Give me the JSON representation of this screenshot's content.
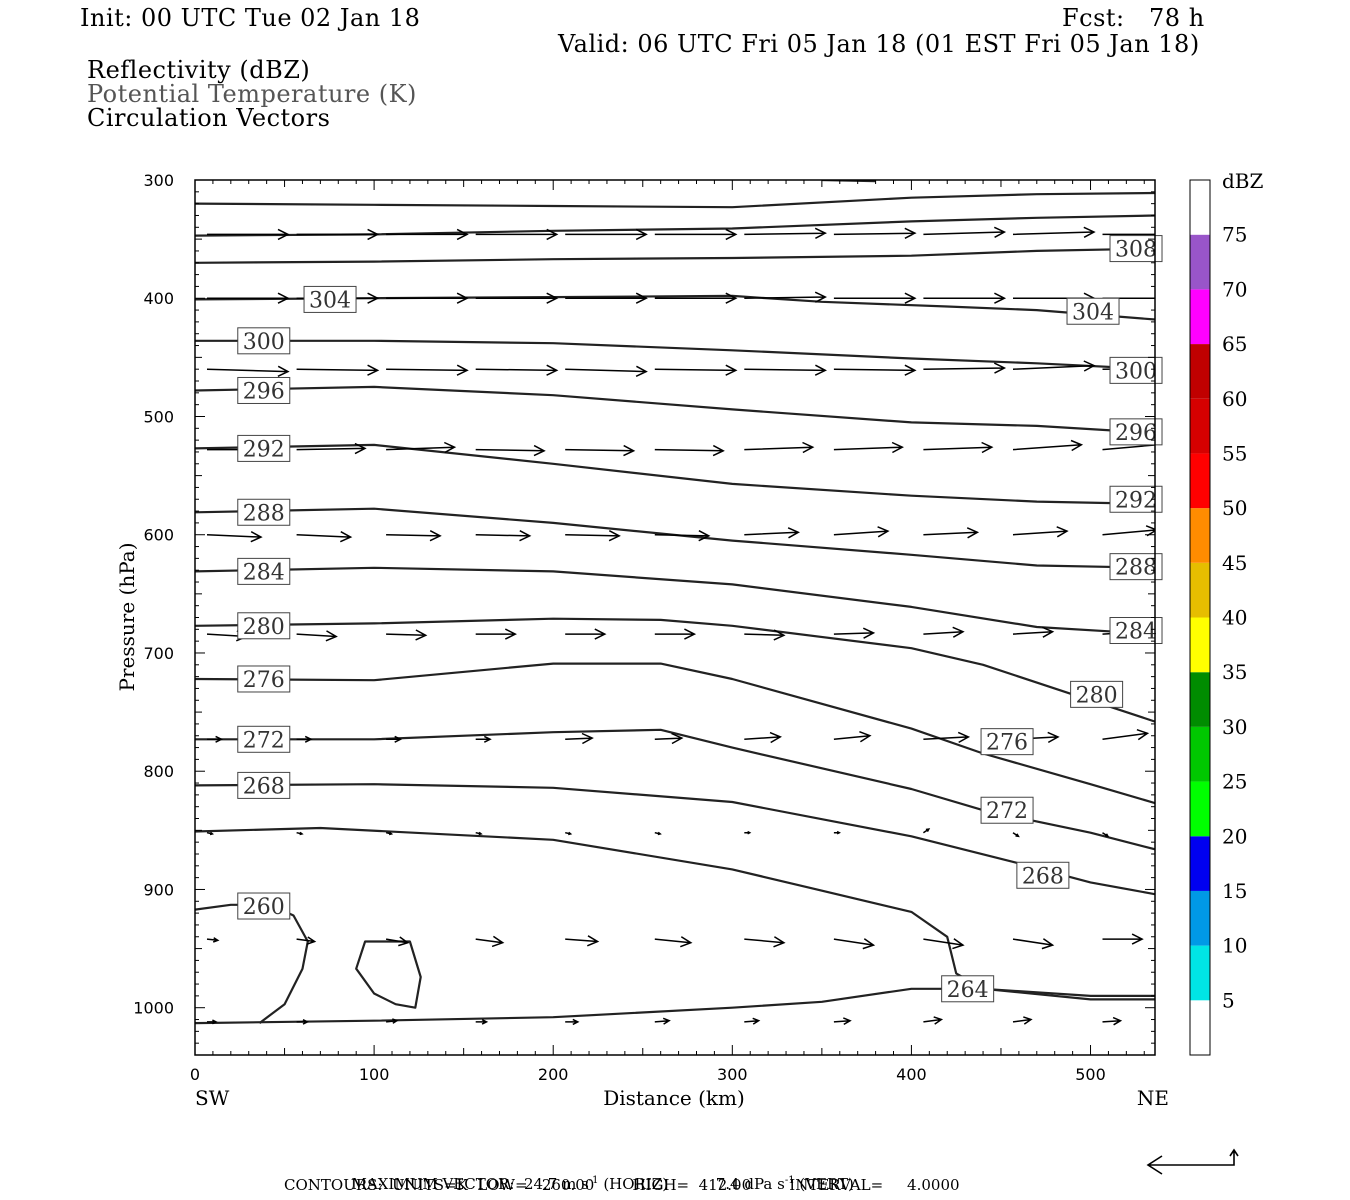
{
  "header": {
    "init": "Init: 00 UTC Tue 02 Jan 18",
    "fcst": "Fcst:   78 h",
    "valid": "Valid: 06 UTC Fri 05 Jan 18 (01 EST Fri 05 Jan 18)",
    "fields": [
      {
        "label": "Reflectivity (dBZ)",
        "color": "#000000"
      },
      {
        "label": "Potential Temperature (K)",
        "color": "#555555"
      },
      {
        "label": "Circulation Vectors",
        "color": "#000000"
      }
    ]
  },
  "footer": {
    "max_vector_prefix": "MAXIMUM VECTOR:",
    "max_vector_horiz": "24.7 m s",
    "horiz_sup": "-1",
    "horiz_tag": "(HORIZ)",
    "max_vector_vert": "7.4 dPa s",
    "vert_sup": "-1",
    "vert_tag": "(VERT)",
    "contours": "CONTOURS:  UNITS=K  LOW=   260.00        HIGH=  412.00        INTERVAL=     4.0000"
  },
  "chart_data": {
    "type": "cross-section",
    "xlabel": "Distance (km)",
    "ylabel": "Pressure (hPa)",
    "xlim": [
      0,
      536
    ],
    "ylim": [
      1040,
      300
    ],
    "x_ticks": [
      0,
      100,
      200,
      300,
      400,
      500
    ],
    "y_ticks": [
      300,
      400,
      500,
      600,
      700,
      800,
      900,
      1000
    ],
    "left_endpoint": "SW",
    "right_endpoint": "NE",
    "colorbar": {
      "title": "dBZ",
      "levels": [
        5,
        10,
        15,
        20,
        25,
        30,
        35,
        40,
        45,
        50,
        55,
        60,
        65,
        70,
        75
      ],
      "colors": [
        "#ffffff",
        "#00e5e5",
        "#0099e6",
        "#0000f0",
        "#00ff00",
        "#00c800",
        "#008c00",
        "#ffff00",
        "#e6be00",
        "#ff8c00",
        "#ff0000",
        "#d60000",
        "#c00000",
        "#ff00ff",
        "#9955c9",
        "#ffffff"
      ]
    },
    "theta_contours": [
      {
        "value": 308,
        "points": [
          [
            0,
            347
          ],
          [
            100,
            346
          ],
          [
            200,
            343
          ],
          [
            300,
            341
          ],
          [
            400,
            335
          ],
          [
            470,
            332
          ],
          [
            536,
            330
          ]
        ],
        "labels": [
          [
            512,
            358
          ]
        ]
      },
      {
        "value": 304,
        "points": [
          [
            0,
            401
          ],
          [
            100,
            400
          ],
          [
            200,
            399
          ],
          [
            300,
            398
          ],
          [
            350,
            403
          ],
          [
            420,
            407
          ],
          [
            470,
            410
          ],
          [
            536,
            418
          ]
        ],
        "labels": [
          [
            62,
            401
          ],
          [
            488,
            411
          ]
        ]
      },
      {
        "value": 300,
        "points": [
          [
            0,
            436
          ],
          [
            100,
            436
          ],
          [
            200,
            438
          ],
          [
            300,
            444
          ],
          [
            400,
            451
          ],
          [
            470,
            455
          ],
          [
            536,
            460
          ]
        ],
        "labels": [
          [
            25,
            436
          ],
          [
            512,
            461
          ]
        ]
      },
      {
        "value": 296,
        "points": [
          [
            0,
            478
          ],
          [
            100,
            475
          ],
          [
            200,
            482
          ],
          [
            300,
            494
          ],
          [
            400,
            505
          ],
          [
            470,
            508
          ],
          [
            536,
            514
          ]
        ],
        "labels": [
          [
            25,
            478
          ],
          [
            512,
            513
          ]
        ]
      },
      {
        "value": 292,
        "points": [
          [
            0,
            527
          ],
          [
            100,
            524
          ],
          [
            200,
            540
          ],
          [
            300,
            557
          ],
          [
            400,
            567
          ],
          [
            470,
            572
          ],
          [
            536,
            574
          ]
        ],
        "labels": [
          [
            25,
            527
          ],
          [
            512,
            570
          ]
        ]
      },
      {
        "value": 288,
        "points": [
          [
            0,
            581
          ],
          [
            100,
            578
          ],
          [
            200,
            590
          ],
          [
            300,
            605
          ],
          [
            400,
            617
          ],
          [
            470,
            626
          ],
          [
            536,
            628
          ]
        ],
        "labels": [
          [
            25,
            581
          ],
          [
            512,
            627
          ]
        ]
      },
      {
        "value": 284,
        "points": [
          [
            0,
            631
          ],
          [
            100,
            628
          ],
          [
            200,
            631
          ],
          [
            300,
            642
          ],
          [
            400,
            661
          ],
          [
            470,
            678
          ],
          [
            536,
            684
          ]
        ],
        "labels": [
          [
            25,
            631
          ],
          [
            512,
            681
          ]
        ]
      },
      {
        "value": 280,
        "points": [
          [
            0,
            677
          ],
          [
            100,
            675
          ],
          [
            200,
            671
          ],
          [
            260,
            672
          ],
          [
            300,
            677
          ],
          [
            400,
            696
          ],
          [
            440,
            710
          ],
          [
            500,
            740
          ],
          [
            536,
            758
          ]
        ],
        "labels": [
          [
            25,
            677
          ],
          [
            490,
            735
          ]
        ]
      },
      {
        "value": 276,
        "points": [
          [
            0,
            722
          ],
          [
            100,
            723
          ],
          [
            200,
            709
          ],
          [
            260,
            709
          ],
          [
            300,
            722
          ],
          [
            400,
            764
          ],
          [
            440,
            785
          ],
          [
            500,
            811
          ],
          [
            536,
            827
          ]
        ],
        "labels": [
          [
            25,
            722
          ],
          [
            440,
            775
          ]
        ]
      },
      {
        "value": 272,
        "points": [
          [
            0,
            773
          ],
          [
            100,
            773
          ],
          [
            200,
            767
          ],
          [
            260,
            765
          ],
          [
            300,
            780
          ],
          [
            400,
            815
          ],
          [
            440,
            833
          ],
          [
            500,
            852
          ],
          [
            536,
            866
          ]
        ],
        "labels": [
          [
            25,
            773
          ],
          [
            440,
            833
          ]
        ]
      },
      {
        "value": 268,
        "points": [
          [
            0,
            812
          ],
          [
            100,
            811
          ],
          [
            200,
            814
          ],
          [
            300,
            826
          ],
          [
            400,
            855
          ],
          [
            460,
            878
          ],
          [
            500,
            894
          ],
          [
            536,
            904
          ]
        ],
        "labels": [
          [
            25,
            812
          ],
          [
            460,
            888
          ]
        ]
      },
      {
        "value": 264,
        "points": [
          [
            0,
            851
          ],
          [
            70,
            848
          ],
          [
            200,
            858
          ],
          [
            300,
            883
          ],
          [
            400,
            919
          ],
          [
            420,
            940
          ],
          [
            425,
            971
          ],
          [
            440,
            984
          ],
          [
            500,
            990
          ],
          [
            536,
            990
          ]
        ],
        "labels": [
          [
            418,
            984
          ]
        ]
      },
      {
        "value": 260,
        "points": [
          [
            36,
            1013
          ],
          [
            50,
            997
          ],
          [
            60,
            967
          ],
          [
            63,
            944
          ],
          [
            55,
            922
          ],
          [
            45,
            915
          ],
          [
            35,
            913
          ],
          [
            20,
            913
          ],
          [
            0,
            917
          ]
        ],
        "labels": [
          [
            25,
            914
          ]
        ]
      },
      {
        "value": 260,
        "points": [
          [
            110,
            944
          ],
          [
            120,
            944
          ],
          [
            126,
            974
          ],
          [
            123,
            1000
          ],
          [
            112,
            997
          ],
          [
            100,
            988
          ],
          [
            90,
            967
          ],
          [
            95,
            944
          ],
          [
            110,
            944
          ]
        ],
        "labels": []
      },
      {
        "value": 260,
        "points": [
          [
            0,
            1013
          ],
          [
            100,
            1011
          ],
          [
            200,
            1008
          ],
          [
            300,
            1000
          ],
          [
            350,
            995
          ],
          [
            400,
            984
          ],
          [
            440,
            984
          ],
          [
            500,
            993
          ],
          [
            536,
            993
          ]
        ],
        "labels": []
      }
    ],
    "extra_contours": [
      {
        "points": [
          [
            0,
            320
          ],
          [
            100,
            321
          ],
          [
            200,
            322
          ],
          [
            300,
            323
          ],
          [
            400,
            315
          ],
          [
            470,
            312
          ],
          [
            536,
            311
          ]
        ]
      },
      {
        "points": [
          [
            0,
            370
          ],
          [
            100,
            369
          ],
          [
            200,
            367
          ],
          [
            300,
            366
          ],
          [
            400,
            364
          ],
          [
            470,
            360
          ],
          [
            536,
            358
          ]
        ]
      },
      {
        "points": [
          [
            350,
            300
          ],
          [
            380,
            301
          ]
        ]
      }
    ],
    "vectors": [
      {
        "level": 346,
        "x": [
          0,
          50,
          100,
          150,
          200,
          250,
          300,
          350,
          400,
          450,
          500
        ],
        "u": [
          45,
          45,
          45,
          45,
          45,
          45,
          45,
          45,
          45,
          45,
          45
        ],
        "w": [
          0,
          0,
          0,
          0,
          0,
          0,
          -1,
          -1,
          -2,
          -2,
          0
        ]
      },
      {
        "level": 400,
        "x": [
          0,
          50,
          100,
          150,
          200,
          250,
          300,
          350,
          400,
          450,
          500
        ],
        "u": [
          45,
          45,
          45,
          45,
          45,
          45,
          45,
          45,
          45,
          45,
          45
        ],
        "w": [
          0,
          0,
          0,
          0,
          0,
          0,
          -1,
          0,
          0,
          0,
          0
        ]
      },
      {
        "level": 460,
        "x": [
          0,
          50,
          100,
          150,
          200,
          250,
          300,
          350,
          400,
          450,
          500
        ],
        "u": [
          45,
          45,
          45,
          45,
          45,
          45,
          45,
          45,
          45,
          45,
          45
        ],
        "w": [
          2,
          1,
          1,
          1,
          2,
          1,
          1,
          1,
          -1,
          -3,
          -1
        ]
      },
      {
        "level": 528,
        "x": [
          0,
          50,
          100,
          150,
          200,
          250,
          300,
          350,
          400,
          450,
          500
        ],
        "u": [
          38,
          38,
          38,
          38,
          38,
          38,
          38,
          38,
          38,
          38,
          38
        ],
        "w": [
          0,
          -1,
          -2,
          1,
          1,
          1,
          -2,
          -2,
          -2,
          -4,
          -5
        ]
      },
      {
        "level": 600,
        "x": [
          0,
          50,
          100,
          150,
          200,
          250,
          300,
          350,
          400,
          450,
          500
        ],
        "u": [
          30,
          30,
          30,
          30,
          30,
          30,
          30,
          30,
          30,
          30,
          30
        ],
        "w": [
          2,
          2,
          1,
          1,
          1,
          1,
          -2,
          -3,
          -2,
          -3,
          -4
        ]
      },
      {
        "level": 684,
        "x": [
          0,
          50,
          100,
          150,
          200,
          250,
          300,
          350,
          400,
          450,
          500
        ],
        "u": [
          22,
          22,
          22,
          22,
          22,
          22,
          22,
          22,
          22,
          22,
          22
        ],
        "w": [
          2,
          2,
          1,
          0,
          0,
          0,
          1,
          -1,
          -2,
          -2,
          -2
        ]
      },
      {
        "level": 773,
        "x": [
          0,
          50,
          100,
          150,
          200,
          250,
          300,
          350,
          400,
          450,
          500
        ],
        "u": [
          8,
          8,
          8,
          8,
          15,
          15,
          20,
          20,
          25,
          25,
          25
        ],
        "w": [
          0,
          0,
          0,
          0,
          -1,
          -1,
          -2,
          -3,
          -2,
          -2,
          -5
        ]
      },
      {
        "level": 852,
        "x": [
          0,
          50,
          100,
          150,
          200,
          250,
          300,
          350,
          400,
          450,
          500
        ],
        "u": [
          3,
          3,
          3,
          3,
          3,
          3,
          3,
          3,
          3,
          3,
          3
        ],
        "w": [
          1,
          1,
          1,
          1,
          1,
          1,
          0,
          0,
          -3,
          3,
          3
        ]
      },
      {
        "level": 942,
        "x": [
          0,
          50,
          100,
          150,
          200,
          250,
          300,
          350,
          400,
          450,
          500
        ],
        "u": [
          6,
          10,
          12,
          15,
          18,
          20,
          22,
          22,
          22,
          22,
          22
        ],
        "w": [
          1,
          2,
          3,
          3,
          2,
          3,
          3,
          5,
          5,
          5,
          0
        ]
      },
      {
        "level": 1012,
        "x": [
          0,
          50,
          100,
          150,
          200,
          250,
          300,
          350,
          400,
          450,
          500
        ],
        "u": [
          5,
          6,
          6,
          6,
          7,
          8,
          8,
          9,
          10,
          10,
          10
        ],
        "w": [
          0,
          0,
          -1,
          0,
          0,
          -1,
          -1,
          -1,
          -2,
          -2,
          -1
        ]
      }
    ]
  }
}
